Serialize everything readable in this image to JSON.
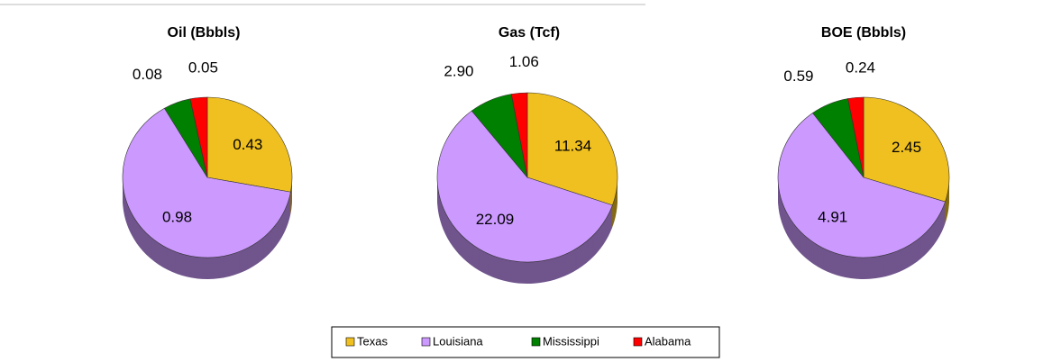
{
  "chart_data": [
    {
      "type": "pie",
      "title": "Oil (Bbbls)",
      "categories": [
        "Texas",
        "Louisiana",
        "Mississippi",
        "Alabama"
      ],
      "values": [
        0.43,
        0.98,
        0.08,
        0.05
      ],
      "colors": [
        "#f0c020",
        "#cc99ff",
        "#008000",
        "#ff0000"
      ]
    },
    {
      "type": "pie",
      "title": "Gas (Tcf)",
      "categories": [
        "Texas",
        "Louisiana",
        "Mississippi",
        "Alabama"
      ],
      "values": [
        11.34,
        22.09,
        2.9,
        1.06
      ],
      "value_labels": [
        "11.34",
        "22.09",
        "2.90",
        "1.06"
      ],
      "colors": [
        "#f0c020",
        "#cc99ff",
        "#008000",
        "#ff0000"
      ]
    },
    {
      "type": "pie",
      "title": "BOE (Bbbls)",
      "categories": [
        "Texas",
        "Louisiana",
        "Mississippi",
        "Alabama"
      ],
      "values": [
        2.45,
        4.91,
        0.59,
        0.24
      ],
      "colors": [
        "#f0c020",
        "#cc99ff",
        "#008000",
        "#ff0000"
      ]
    }
  ]
}
